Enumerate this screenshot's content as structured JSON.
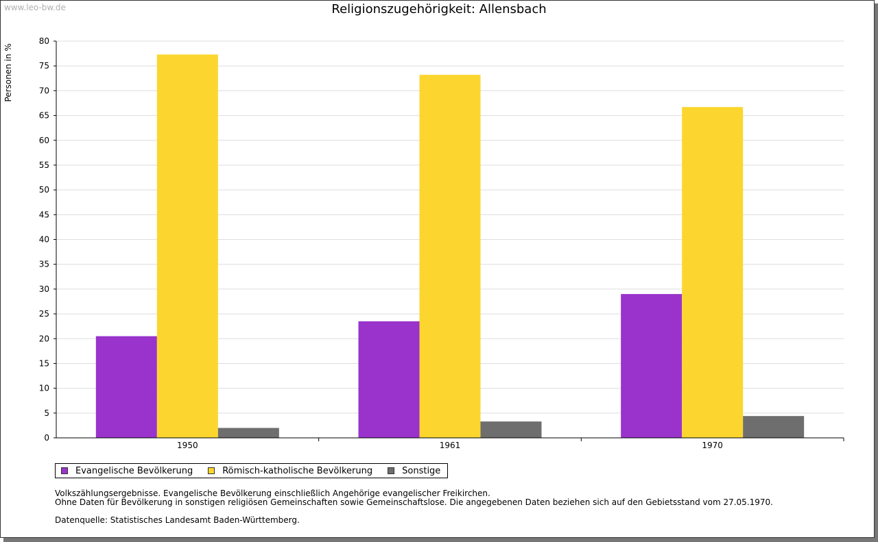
{
  "source_label": "www.leo-bw.de",
  "colors": {
    "evangelisch": "#9933cc",
    "katholisch": "#fcd62e",
    "sonstige": "#6e6e6e",
    "grid": "#dddddd"
  },
  "chart_data": {
    "type": "bar",
    "title": "Religionszugehörigkeit: Allensbach",
    "xlabel": "",
    "ylabel": "Personen in %",
    "ylim": [
      0,
      80
    ],
    "yticks": [
      0,
      5,
      10,
      15,
      20,
      25,
      30,
      35,
      40,
      45,
      50,
      55,
      60,
      65,
      70,
      75,
      80
    ],
    "categories": [
      "1950",
      "1961",
      "1970"
    ],
    "grid": true,
    "legend_position": "bottom-left",
    "series": [
      {
        "key": "evangelisch",
        "name": "Evangelische Bevölkerung",
        "values": [
          20.5,
          23.5,
          29.0
        ]
      },
      {
        "key": "katholisch",
        "name": "Römisch-katholische Bevölkerung",
        "values": [
          77.3,
          73.2,
          66.7
        ]
      },
      {
        "key": "sonstige",
        "name": "Sonstige",
        "values": [
          2.0,
          3.3,
          4.4
        ]
      }
    ]
  },
  "notes": {
    "line1": "Volkszählungsergebnisse. Evangelische Bevölkerung einschließlich Angehörige evangelischer Freikirchen.",
    "line2": "Ohne Daten für Bevölkerung in sonstigen religiösen Gemeinschaften sowie Gemeinschaftslose. Die angegebenen Daten beziehen sich auf den Gebietsstand vom 27.05.1970.",
    "line3": "Datenquelle: Statistisches Landesamt Baden-Württemberg."
  }
}
